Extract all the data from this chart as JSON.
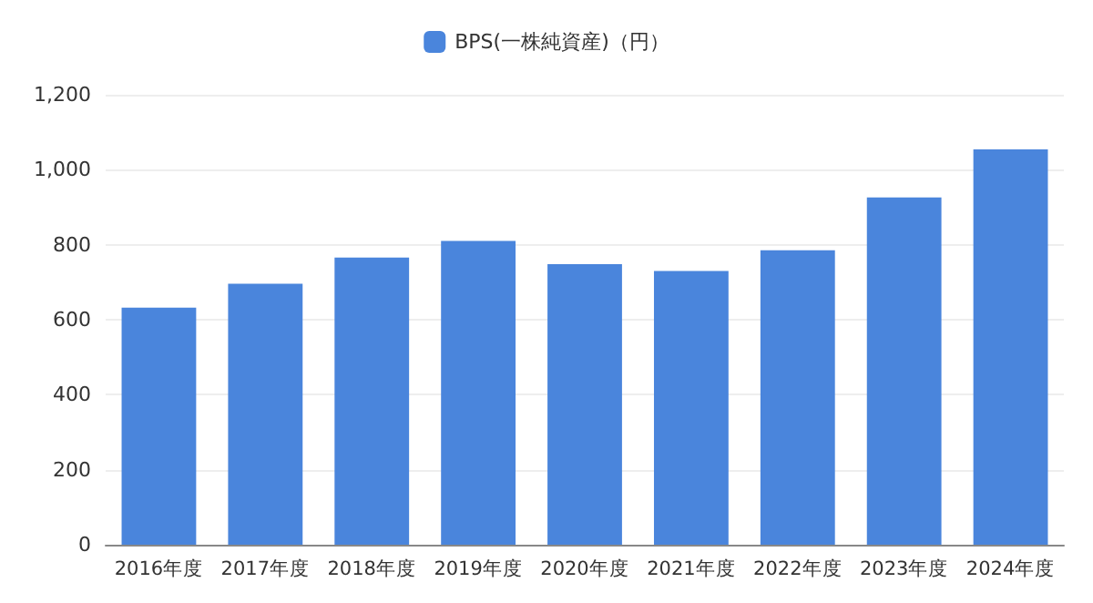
{
  "chart_data": {
    "type": "bar",
    "categories": [
      "2016年度",
      "2017年度",
      "2018年度",
      "2019年度",
      "2020年度",
      "2021年度",
      "2022年度",
      "2023年度",
      "2024年度"
    ],
    "series": [
      {
        "name": "BPS(一株純資産)（円）",
        "color": "#4a85dc",
        "values": [
          632,
          696,
          766,
          810,
          748,
          730,
          785,
          926,
          1054
        ]
      }
    ],
    "ylim": [
      0,
      1200
    ],
    "yticks": [
      0,
      200,
      400,
      600,
      800,
      {
        "value": 1000,
        "label": "1,000"
      },
      {
        "value": 1200,
        "label": "1,200"
      }
    ],
    "grid": "y",
    "legend": "top"
  }
}
